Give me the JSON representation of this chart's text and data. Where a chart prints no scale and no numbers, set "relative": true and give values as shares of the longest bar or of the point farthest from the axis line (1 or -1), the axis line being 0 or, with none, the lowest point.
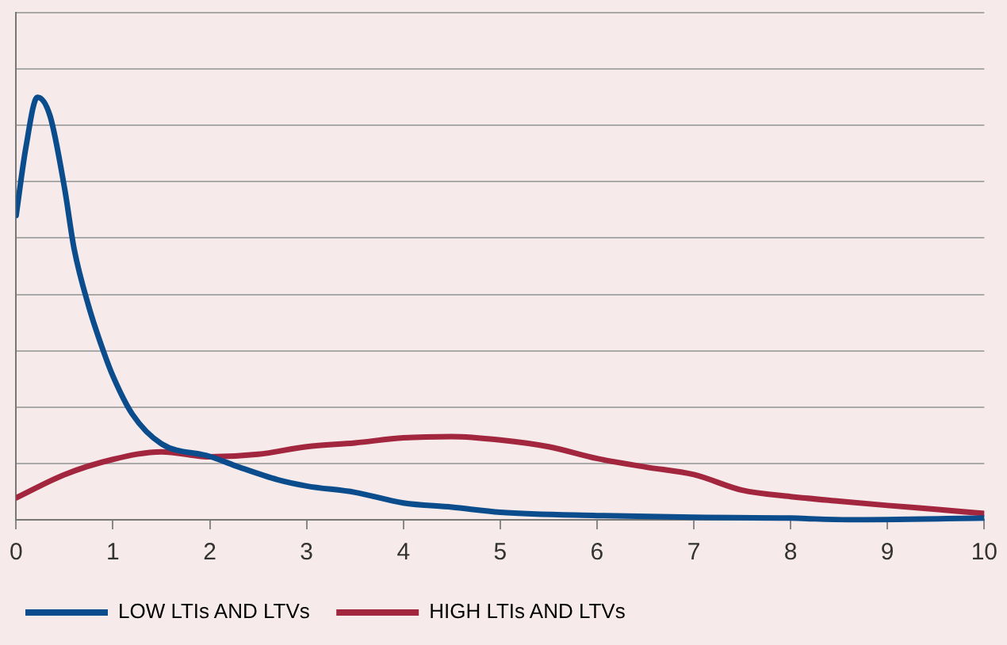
{
  "chart_data": {
    "type": "line",
    "relative": true,
    "grid": "y",
    "legend": "bottom",
    "marker": "none",
    "line_style": "solid",
    "xlim": [
      0,
      10
    ],
    "xticks": [
      0,
      1,
      2,
      3,
      4,
      5,
      6,
      7,
      8,
      9,
      10
    ],
    "series": [
      {
        "name": "LOW LTIs AND LTVs",
        "color": "#0b4d8c",
        "x": [
          0,
          0.1,
          0.22,
          0.35,
          0.5,
          0.6,
          0.75,
          0.9,
          1,
          1.2,
          1.5,
          2,
          2.3,
          2.7,
          3,
          3.5,
          4,
          4.5,
          5,
          6,
          7,
          8,
          8.6,
          10
        ],
        "values": [
          0.72,
          0.88,
          1,
          0.956,
          0.785,
          0.64,
          0.505,
          0.4,
          0.34,
          0.25,
          0.18,
          0.15,
          0.125,
          0.095,
          0.08,
          0.065,
          0.04,
          0.03,
          0.018,
          0.01,
          0.006,
          0.004,
          0,
          0.004
        ]
      },
      {
        "name": "HIGH LTIs AND LTVs",
        "color": "#a3263f",
        "x": [
          0,
          0.5,
          1,
          1.5,
          2,
          2.5,
          3,
          3.5,
          4,
          4.5,
          5,
          5.5,
          6,
          6.5,
          7,
          7.5,
          8,
          8.5,
          9,
          9.5,
          10
        ],
        "values": [
          0.052,
          0.107,
          0.143,
          0.161,
          0.149,
          0.155,
          0.173,
          0.182,
          0.194,
          0.197,
          0.189,
          0.173,
          0.145,
          0.125,
          0.107,
          0.07,
          0.055,
          0.044,
          0.034,
          0.025,
          0.015
        ]
      }
    ]
  }
}
